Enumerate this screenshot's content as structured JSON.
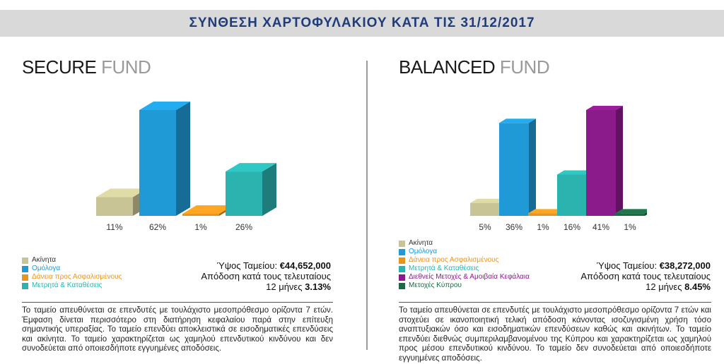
{
  "header": {
    "title": "ΣΥΝΘΕΣΗ ΧΑΡΤΟΦΥΛΑΚΙΟΥ ΚΑΤΑ ΤΙΣ 31/12/2017"
  },
  "categories": {
    "property": "Ακίνητα",
    "bonds": "Ομόλογα",
    "loans": "Δάνεια προς Ασφαλισμένους",
    "cash": "Μετρητά & Καταθέσεις",
    "intl_equities": "Διεθνείς Μετοχές & Αμοιβαία Κεφάλαια",
    "cyprus_equities": "Μετοχές Κύπρου"
  },
  "colors": {
    "property": "#c8c496",
    "bonds": "#1f9ad6",
    "loans": "#e8951f",
    "cash": "#2bb3b0",
    "intl_equities": "#8b1a8b",
    "cyprus_equities": "#1a6b45"
  },
  "secure": {
    "title_main": "SECURE",
    "title_sub": "FUND",
    "fund_value_label": "Ύψος Ταμείου:",
    "fund_value": "€44,652,000",
    "return_label_1": "Απόδοση κατά τους τελευταίους",
    "return_label_2": "12 μήνες",
    "return_value": "3.13%",
    "description": "Το ταμείο απευθύνεται σε επενδυτές με τουλάχιστο μεσοπρόθεσμο ορίζοντα 7 ετών. Έμφαση δίνεται περισσότερο στη διατήρηση κεφαλαίου παρά στην επίτευξη σημαντικής υπεραξίας. Το ταμείο επενδύει αποκλειστικά σε εισοδηματικές επενδύσεις και ακίνητα. Το ταμείο χαρακτηρίζεται ως χαμηλού επενδυτικού κινδύνου και δεν συνοδεύεται από οποιεσδήποτε εγγυημένες αποδόσεις."
  },
  "balanced": {
    "title_main": "BALANCED",
    "title_sub": "FUND",
    "fund_value_label": "Ύψος Ταμείου:",
    "fund_value": "€38,272,000",
    "return_label_1": "Απόδοση κατά τους τελευταίους",
    "return_label_2": "12 μήνες",
    "return_value": "8.45%",
    "description": "Το ταμείο απευθύνεται σε επενδυτές με τουλάχιστο μεσοπρόθεσμο ορίζοντα 7 ετών και στοχεύει σε ικανοποιητική τελική απόδοση κάνοντας ισοζυγισμένη χρήση τόσο αναπτυξιακών όσο και εισοδηματικών επενδύσεων καθώς και ακινήτων. Το ταμείο επενδύει διεθνώς συμπεριλαμβανομένου της Κύπρου και χαρακτηρίζεται ως χαμηλού προς μέσου επενδυτικού κινδύνου. Το ταμείο δεν συνοδεύεται από οποιεσδήποτε εγγυημένες αποδόσεις."
  },
  "chart_data": [
    {
      "type": "bar",
      "categories": [
        "Ακίνητα",
        "Ομόλογα",
        "Δάνεια προς Ασφαλισμένους",
        "Μετρητά & Καταθέσεις"
      ],
      "values": [
        11,
        62,
        1,
        26
      ],
      "labels": [
        "11%",
        "62%",
        "1%",
        "26%"
      ],
      "keys": [
        "property",
        "bonds",
        "loans",
        "cash"
      ],
      "ylim": [
        0,
        62
      ],
      "grid": false,
      "legend": "bottom-left"
    },
    {
      "type": "bar",
      "categories": [
        "Ακίνητα",
        "Ομόλογα",
        "Δάνεια προς Ασφαλισμένους",
        "Μετρητά & Καταθέσεις",
        "Διεθνείς Μετοχές & Αμοιβαία Κεφάλαια",
        "Μετοχές Κύπρου"
      ],
      "values": [
        5,
        36,
        1,
        16,
        41,
        1
      ],
      "labels": [
        "5%",
        "36%",
        "1%",
        "16%",
        "41%",
        "1%"
      ],
      "keys": [
        "property",
        "bonds",
        "loans",
        "cash",
        "intl_equities",
        "cyprus_equities"
      ],
      "ylim": [
        0,
        41
      ],
      "grid": false,
      "legend": "bottom-left"
    }
  ]
}
